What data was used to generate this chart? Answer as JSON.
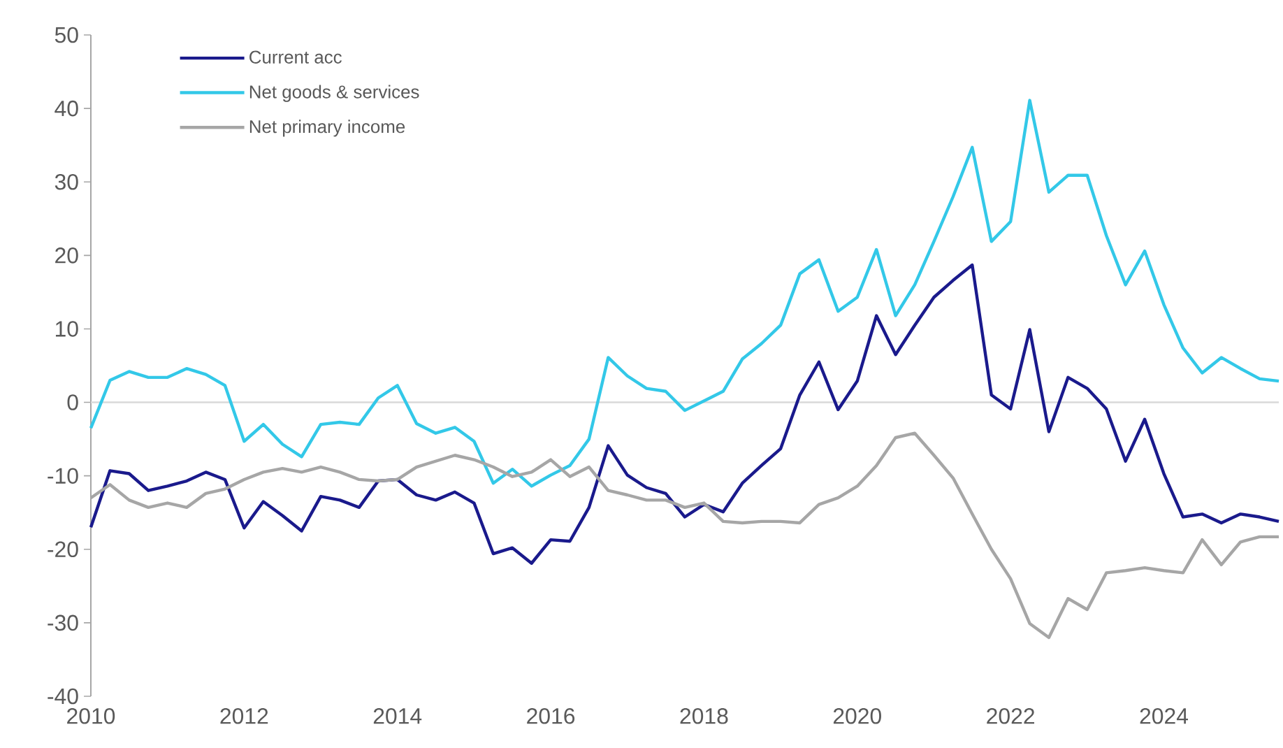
{
  "chart_data": {
    "type": "line",
    "x": [
      2010,
      2010.25,
      2010.5,
      2010.75,
      2011,
      2011.25,
      2011.5,
      2011.75,
      2012,
      2012.25,
      2012.5,
      2012.75,
      2013,
      2013.25,
      2013.5,
      2013.75,
      2014,
      2014.25,
      2014.5,
      2014.75,
      2015,
      2015.25,
      2015.5,
      2015.75,
      2016,
      2016.25,
      2016.5,
      2016.75,
      2017,
      2017.25,
      2017.5,
      2017.75,
      2018,
      2018.25,
      2018.5,
      2018.75,
      2019,
      2019.25,
      2019.5,
      2019.75,
      2020,
      2020.25,
      2020.5,
      2020.75,
      2021,
      2021.25,
      2021.5,
      2021.75,
      2022,
      2022.25,
      2022.5,
      2022.75,
      2023,
      2023.25,
      2023.5,
      2023.75,
      2024,
      2024.25,
      2024.5,
      2024.75,
      2025,
      2025.25,
      2025.5
    ],
    "series": [
      {
        "name": "Current acc",
        "color": "#1a1a8c",
        "values": [
          -17,
          -9.3,
          -9.7,
          -12,
          -11.4,
          -10.7,
          -9.5,
          -10.5,
          -17.1,
          -13.5,
          -15.4,
          -17.5,
          -12.8,
          -13.3,
          -14.3,
          -10.7,
          -10.5,
          -12.6,
          -13.3,
          -12.2,
          -13.7,
          -20.6,
          -19.8,
          -21.9,
          -18.7,
          -18.9,
          -14.3,
          -5.9,
          -9.9,
          -11.6,
          -12.4,
          -15.6,
          -13.9,
          -14.9,
          -11,
          -8.6,
          -6.3,
          1.0,
          5.5,
          -1.0,
          2.9,
          11.8,
          6.5,
          10.5,
          14.3,
          16.6,
          18.7,
          1.0,
          -0.9,
          9.9,
          -4.0,
          3.4,
          1.9,
          -0.9,
          -8.0,
          -2.3,
          -9.7,
          -15.6,
          -15.2,
          -16.4,
          -15.2,
          -15.6,
          -16.2
        ]
      },
      {
        "name": "Net goods & services",
        "color": "#33c8e8",
        "values": [
          -3.5,
          3.0,
          4.2,
          3.4,
          3.4,
          4.6,
          3.8,
          2.3,
          -5.3,
          -3.0,
          -5.7,
          -7.4,
          -3.0,
          -2.7,
          -3.0,
          0.6,
          2.3,
          -2.9,
          -4.2,
          -3.4,
          -5.3,
          -11,
          -9.1,
          -11.4,
          -9.9,
          -8.6,
          -5,
          6.1,
          3.6,
          1.9,
          1.5,
          -1.1,
          0.2,
          1.5,
          5.9,
          8.0,
          10.5,
          17.5,
          19.4,
          12.4,
          14.3,
          20.8,
          11.8,
          16,
          21.9,
          28,
          34.7,
          21.9,
          24.6,
          41.1,
          28.6,
          30.9,
          30.9,
          22.7,
          16,
          20.6,
          13.3,
          7.4,
          4.0,
          6.1,
          4.6,
          3.2,
          2.9
        ]
      },
      {
        "name": "Net primary income",
        "color": "#a6a6a6",
        "values": [
          -13,
          -11.2,
          -13.3,
          -14.3,
          -13.7,
          -14.3,
          -12.4,
          -11.8,
          -10.5,
          -9.5,
          -9.0,
          -9.5,
          -8.8,
          -9.5,
          -10.5,
          -10.7,
          -10.5,
          -8.8,
          -8.0,
          -7.2,
          -7.8,
          -8.8,
          -10.1,
          -9.5,
          -7.8,
          -10.1,
          -8.8,
          -12,
          -12.6,
          -13.3,
          -13.3,
          -14.3,
          -13.7,
          -16.2,
          -16.4,
          -16.2,
          -16.2,
          -16.4,
          -13.9,
          -13,
          -11.4,
          -8.6,
          -4.8,
          -4.2,
          -7.2,
          -10.3,
          -15.2,
          -20,
          -24,
          -30.1,
          -32,
          -26.7,
          -28.2,
          -23.2,
          -22.9,
          -22.5,
          -22.9,
          -23.2,
          -18.7,
          -22.1,
          -19,
          -18.3,
          -18.3
        ]
      }
    ],
    "xlim": [
      2010,
      2025.5
    ],
    "xticks": [
      2010,
      2012,
      2014,
      2016,
      2018,
      2020,
      2022,
      2024
    ],
    "ylim": [
      -40,
      50
    ],
    "yticks": [
      -40,
      -30,
      -20,
      -10,
      0,
      10,
      20,
      30,
      40,
      50
    ],
    "ref_lines": [
      {
        "axis": "y",
        "value": 0,
        "color": "#d9d9d9"
      }
    ],
    "legend": "top left",
    "grid": false,
    "marker": "none",
    "line_style": "solid"
  }
}
